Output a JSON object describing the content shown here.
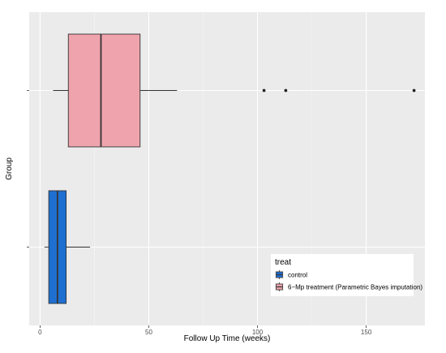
{
  "chart_data": {
    "type": "boxplot",
    "orientation": "horizontal",
    "title": "",
    "xlabel": "Follow Up Time (weeks)",
    "ylabel": "Group",
    "xlim": [
      -5,
      177
    ],
    "xticks": [
      0,
      50,
      100,
      150
    ],
    "grid": true,
    "legend_title": "treat",
    "legend_position": "bottom-right inside",
    "series": [
      {
        "name": "control",
        "color": "#1f6fd1",
        "min": 2,
        "q1": 4,
        "median": 8,
        "q3": 12,
        "max": 23,
        "outliers": []
      },
      {
        "name": "6−Mp treatment (Parametric Bayes imputation)",
        "color": "#efa3ad",
        "min": 6,
        "q1": 13,
        "median": 28,
        "q3": 46,
        "max": 63,
        "outliers": [
          103,
          113,
          172
        ]
      }
    ],
    "legend_order": [
      "control",
      "6−Mp treatment (Parametric Bayes imputation)"
    ]
  }
}
